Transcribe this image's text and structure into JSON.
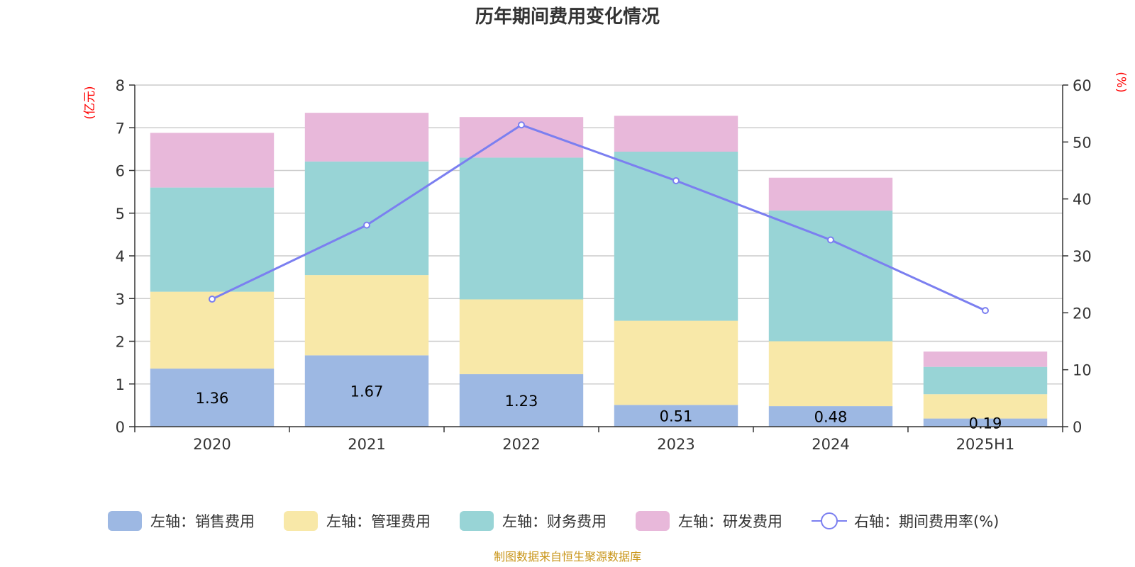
{
  "chart_data": {
    "type": "bar",
    "stacked": true,
    "title": "历年期间费用变化情况",
    "categories": [
      "2020",
      "2021",
      "2022",
      "2023",
      "2024",
      "2025H1"
    ],
    "y_left": {
      "unit": "(亿元)",
      "range": [
        0,
        8
      ],
      "ticks": [
        0,
        1,
        2,
        3,
        4,
        5,
        6,
        7,
        8
      ]
    },
    "y_right": {
      "unit": "(%)",
      "range": [
        0,
        60
      ],
      "ticks": [
        0,
        10,
        20,
        30,
        40,
        50,
        60
      ]
    },
    "grid": true,
    "legend_position": "bottom",
    "series": [
      {
        "name": "左轴：销售费用",
        "type": "bar",
        "axis": "left",
        "color": "#9db8e3",
        "values": [
          1.36,
          1.67,
          1.23,
          0.51,
          0.48,
          0.19
        ],
        "labels": [
          "1.36",
          "1.67",
          "1.23",
          "0.51",
          "0.48",
          "0.19"
        ]
      },
      {
        "name": "左轴：管理费用",
        "type": "bar",
        "axis": "left",
        "color": "#f8e8a8",
        "values": [
          1.8,
          1.88,
          1.75,
          1.97,
          1.52,
          0.57
        ]
      },
      {
        "name": "左轴：财务费用",
        "type": "bar",
        "axis": "left",
        "color": "#98d4d6",
        "values": [
          2.44,
          2.66,
          3.32,
          3.96,
          3.06,
          0.64
        ]
      },
      {
        "name": "左轴：研发费用",
        "type": "bar",
        "axis": "left",
        "color": "#e8b8da",
        "values": [
          1.28,
          1.14,
          0.95,
          0.84,
          0.77,
          0.36
        ]
      },
      {
        "name": "右轴：期间费用率(%)",
        "type": "line",
        "axis": "right",
        "color": "#7b7ff0",
        "values": [
          22.4,
          35.4,
          53.0,
          43.2,
          32.8,
          20.4
        ]
      }
    ]
  },
  "source_note": "制图数据来自恒生聚源数据库"
}
